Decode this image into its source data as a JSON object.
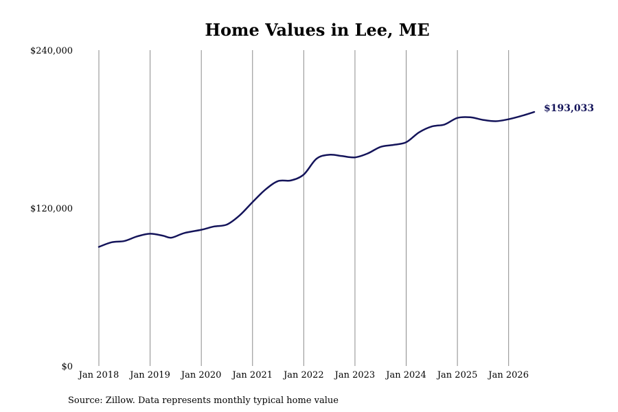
{
  "colors": {
    "line": "#14145a",
    "grid": "#8a8a8a",
    "background": "#ffffff"
  },
  "source_text": "Source: Zillow. Data represents monthly typical home value",
  "chart_data": {
    "type": "line",
    "title": "Home Values in Lee, ME",
    "xlabel": "",
    "ylabel": "",
    "ylim": [
      0,
      240000
    ],
    "yticks": [
      {
        "value": 0,
        "label": "$0"
      },
      {
        "value": 120000,
        "label": "$120,000"
      },
      {
        "value": 240000,
        "label": "$240,000"
      }
    ],
    "xlim": [
      "2018-01",
      "2026-07"
    ],
    "xticks": [
      {
        "x": "2018-01",
        "label": "Jan 2018"
      },
      {
        "x": "2019-01",
        "label": "Jan 2019"
      },
      {
        "x": "2020-01",
        "label": "Jan 2020"
      },
      {
        "x": "2021-01",
        "label": "Jan 2021"
      },
      {
        "x": "2022-01",
        "label": "Jan 2022"
      },
      {
        "x": "2023-01",
        "label": "Jan 2023"
      },
      {
        "x": "2024-01",
        "label": "Jan 2024"
      },
      {
        "x": "2025-01",
        "label": "Jan 2025"
      },
      {
        "x": "2026-01",
        "label": "Jan 2026"
      }
    ],
    "grid": "vertical",
    "legend": "none",
    "series": [
      {
        "name": "",
        "end_label": "$193,033",
        "points": [
          {
            "x": "2018-01",
            "y": 90500
          },
          {
            "x": "2018-04",
            "y": 94000
          },
          {
            "x": "2018-07",
            "y": 95000
          },
          {
            "x": "2018-10",
            "y": 98500
          },
          {
            "x": "2019-01",
            "y": 100500
          },
          {
            "x": "2019-04",
            "y": 99000
          },
          {
            "x": "2019-06",
            "y": 97500
          },
          {
            "x": "2019-09",
            "y": 101000
          },
          {
            "x": "2020-01",
            "y": 103500
          },
          {
            "x": "2020-04",
            "y": 106000
          },
          {
            "x": "2020-07",
            "y": 107500
          },
          {
            "x": "2020-10",
            "y": 114500
          },
          {
            "x": "2021-01",
            "y": 124500
          },
          {
            "x": "2021-04",
            "y": 134000
          },
          {
            "x": "2021-07",
            "y": 140500
          },
          {
            "x": "2021-10",
            "y": 141000
          },
          {
            "x": "2022-01",
            "y": 145500
          },
          {
            "x": "2022-04",
            "y": 157500
          },
          {
            "x": "2022-07",
            "y": 160500
          },
          {
            "x": "2022-10",
            "y": 159500
          },
          {
            "x": "2023-01",
            "y": 158500
          },
          {
            "x": "2023-04",
            "y": 161500
          },
          {
            "x": "2023-07",
            "y": 166500
          },
          {
            "x": "2023-10",
            "y": 168000
          },
          {
            "x": "2024-01",
            "y": 170000
          },
          {
            "x": "2024-04",
            "y": 177500
          },
          {
            "x": "2024-07",
            "y": 182000
          },
          {
            "x": "2024-10",
            "y": 183500
          },
          {
            "x": "2025-01",
            "y": 188500
          },
          {
            "x": "2025-04",
            "y": 189000
          },
          {
            "x": "2025-07",
            "y": 187000
          },
          {
            "x": "2025-10",
            "y": 186000
          },
          {
            "x": "2026-01",
            "y": 187500
          },
          {
            "x": "2026-04",
            "y": 190000
          },
          {
            "x": "2026-07",
            "y": 193033
          }
        ]
      }
    ]
  }
}
